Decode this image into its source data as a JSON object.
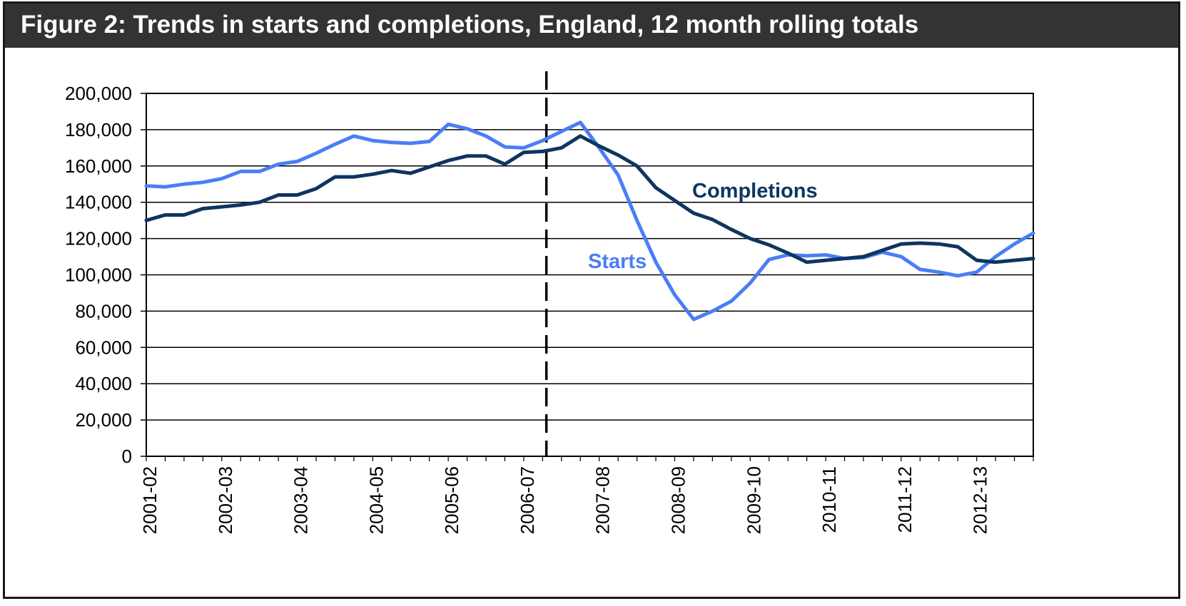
{
  "figure": {
    "title": "Figure 2: Trends in starts and completions, England, 12 month rolling totals"
  },
  "colors": {
    "starts": "#4a7ef5",
    "completions": "#0d3560",
    "title_bg": "#333333",
    "grid": "#000000"
  },
  "chart_data": {
    "type": "line",
    "title": "Figure 2: Trends in starts and completions, England, 12 month rolling totals",
    "xlabel": "",
    "ylabel": "",
    "ylim": [
      0,
      200000
    ],
    "yticks": [
      0,
      20000,
      40000,
      60000,
      80000,
      100000,
      120000,
      140000,
      160000,
      180000,
      200000
    ],
    "ytick_labels": [
      "0",
      "20,000",
      "40,000",
      "60,000",
      "80,000",
      "100,000",
      "120,000",
      "140,000",
      "160,000",
      "180,000",
      "200,000"
    ],
    "x_tick_labels": [
      "2001-02",
      "2002-03",
      "2003-04",
      "2004-05",
      "2005-06",
      "2006-07",
      "2007-08",
      "2008-09",
      "2009-10",
      "2010-11",
      "2011-12",
      "2012-13"
    ],
    "points_per_year": 4,
    "grid": true,
    "marker_line": {
      "style": "dashed",
      "index": 5.3
    },
    "series": [
      {
        "name": "Starts",
        "label": "Starts",
        "values": [
          149000,
          148500,
          150000,
          151000,
          153000,
          157000,
          157000,
          161000,
          162500,
          167000,
          172000,
          176500,
          174000,
          173000,
          172500,
          173500,
          183000,
          180500,
          176500,
          170500,
          170000,
          174000,
          179000,
          184000,
          170000,
          155000,
          130000,
          107000,
          89000,
          75500,
          80000,
          85500,
          95500,
          108500,
          111000,
          110500,
          111000,
          109000,
          109500,
          112500,
          110000,
          103000,
          101500,
          99500,
          101500,
          110000,
          117000,
          123000
        ]
      },
      {
        "name": "Completions",
        "label": "Completions",
        "values": [
          130000,
          133000,
          133000,
          136500,
          137500,
          138500,
          140000,
          144000,
          144000,
          147500,
          154000,
          154000,
          155500,
          157500,
          156000,
          159500,
          163000,
          165500,
          165500,
          161000,
          167500,
          168000,
          170000,
          176500,
          171000,
          166000,
          160000,
          148000,
          141000,
          134000,
          130500,
          125000,
          120000,
          116500,
          112000,
          107000,
          108000,
          109000,
          110000,
          113500,
          117000,
          117500,
          117000,
          115500,
          108000,
          107000,
          108000,
          109000
        ]
      }
    ]
  }
}
